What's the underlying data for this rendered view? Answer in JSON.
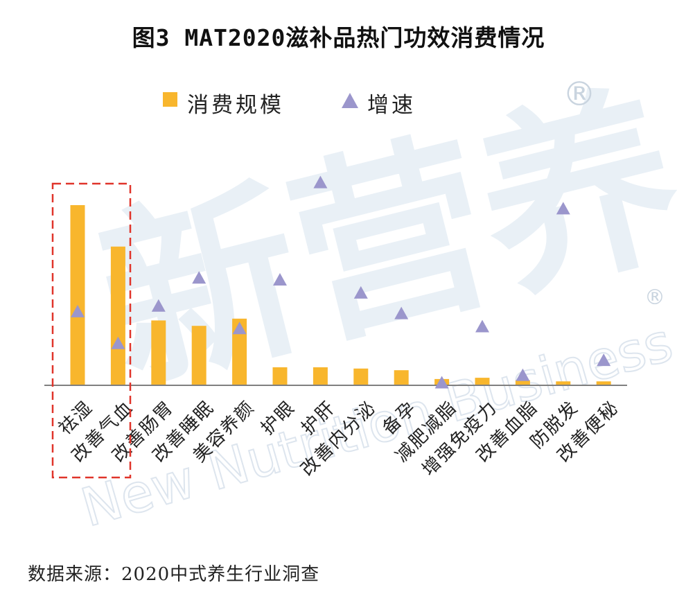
{
  "title": "图3 MAT2020滋补品热门功效消费情况",
  "legend": {
    "bar_label": "消费规模",
    "marker_label": "增速"
  },
  "source": "数据来源：2020中式养生行业洞查",
  "watermark": {
    "cn": "新营养",
    "en": "New Nutrition Business",
    "reg": "®"
  },
  "colors": {
    "bar": "#F8B62D",
    "marker": "#9B96CC",
    "axis": "#7f7f7f",
    "highlight": "#E0342A"
  },
  "chart_data": {
    "type": "bar",
    "title": "图3 MAT2020滋补品热门功效消费情况",
    "categories": [
      "祛湿",
      "改善气血",
      "改善肠胃",
      "改善睡眠",
      "美容养颜",
      "护眼",
      "护肝",
      "改善内分泌",
      "备孕",
      "减肥减脂",
      "增强免疫力",
      "改善血脂",
      "防脱发",
      "改善便秘"
    ],
    "series": [
      {
        "name": "消费规模",
        "type": "bar",
        "values": [
          100,
          77,
          36,
          33,
          37,
          10,
          10,
          9.3,
          8.4,
          3.5,
          4.2,
          2.8,
          2.2,
          2.2
        ]
      },
      {
        "name": "增速",
        "type": "scatter",
        "values": [
          43,
          26,
          46,
          61,
          34,
          60,
          112,
          53,
          42,
          5,
          35,
          9,
          98,
          17
        ]
      }
    ],
    "y_axis_labels_shown": false,
    "grid": false,
    "legend_position": "top",
    "highlight_categories": [
      "祛湿",
      "改善气血"
    ]
  }
}
